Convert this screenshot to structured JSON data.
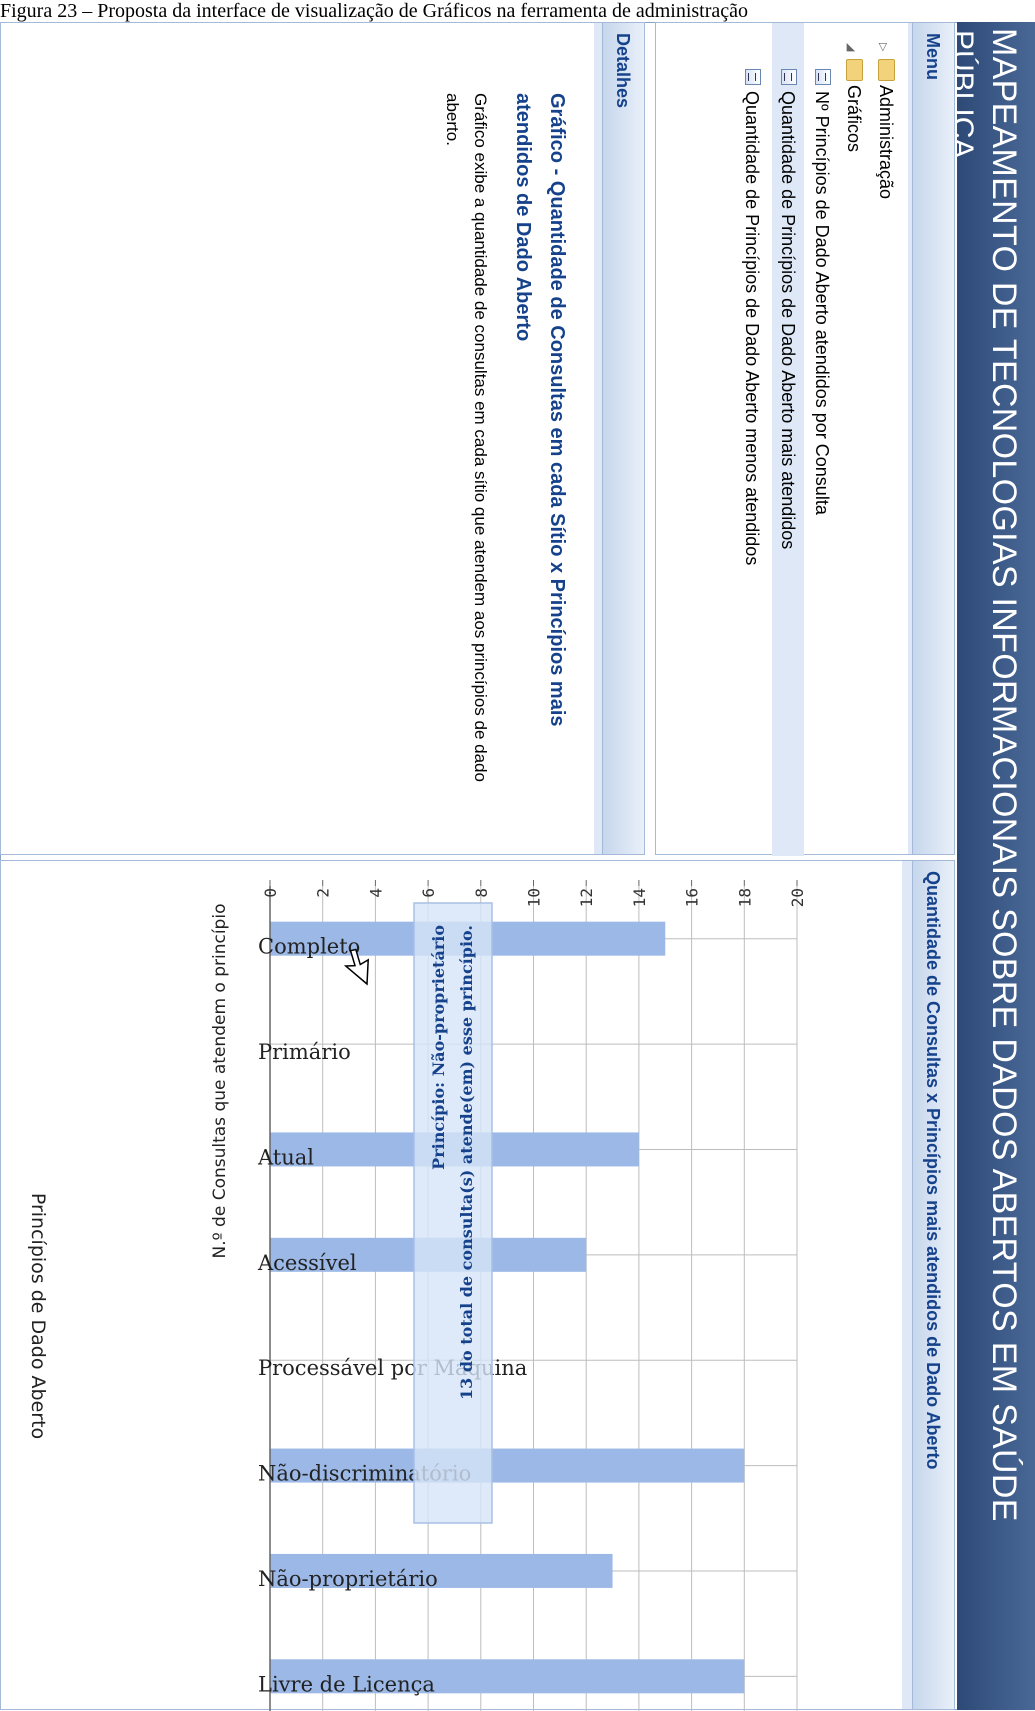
{
  "caption": "Figura 23 – Proposta da interface de visualização de Gráficos na ferramenta de administração",
  "header": {
    "title": "MAPEAMENTO DE TECNOLOGIAS INFORMACIONAIS SOBRE DADOS ABERTOS EM SAÚDE",
    "title_line2": "PÚBLICA"
  },
  "menu": {
    "title": "Menu",
    "items": [
      {
        "label": "Administração",
        "icon": "folder-icon"
      },
      {
        "label": "Gráficos",
        "icon": "folder-open-icon"
      },
      {
        "label": "Nº Princípios de Dado Aberto atendidos por Consulta",
        "icon": "chart-item-icon"
      },
      {
        "label": "Quantidade de Princípios de Dado Aberto mais atendidos",
        "icon": "chart-item-icon",
        "selected": true
      },
      {
        "label": "Quantidade de Princípios de Dado Aberto menos atendidos",
        "icon": "chart-item-icon"
      }
    ]
  },
  "details": {
    "title": "Detalhes",
    "chart_title": "Gráfico - Quantidade de Consultas em cada Sítio x Princípios mais atendidos de Dado Aberto",
    "description": "Gráfico exibe a quantidade de consultas em cada sítio que atendem aos princípios de dado aberto."
  },
  "chart_panel": {
    "title": "Quantidade de Consultas x Princípios mais atendidos de Dado Aberto"
  },
  "tooltip": {
    "line1": "Princípio: Não-proprietário",
    "line2": "13 do total de consulta(s) atende(em) esse princípio."
  },
  "colors": {
    "bar": "#9bb8e6",
    "header": "#15428b",
    "banner": "#3a5784"
  },
  "chart_data": {
    "type": "bar",
    "orientation": "vertical",
    "title": "Quantidade de Consultas x Princípios mais atendidos de Dado Aberto",
    "xlabel": "Princípios de Dado Aberto",
    "ylabel": "N.º de Consultas que atendem o princípio",
    "categories": [
      "Completo",
      "Primário",
      "Atual",
      "Acessível",
      "Processável por Máquina",
      "Não-discriminatório",
      "Não-proprietário",
      "Livre de Licença"
    ],
    "values": [
      15,
      0,
      14,
      12,
      0,
      18,
      13,
      18
    ],
    "ylim": [
      0,
      20
    ],
    "yticks": [
      0,
      2,
      4,
      6,
      8,
      10,
      12,
      14,
      16,
      18,
      20
    ],
    "grid": true
  }
}
